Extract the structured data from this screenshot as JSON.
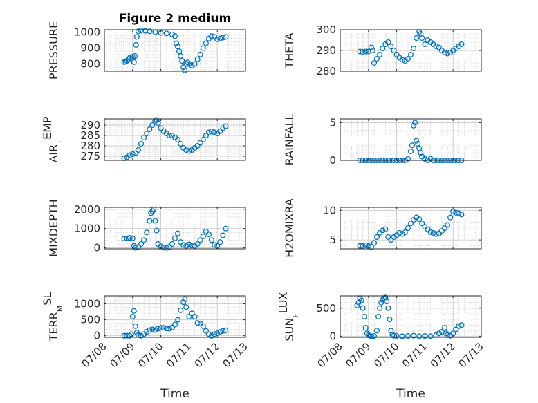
{
  "figure": {
    "title": "Figure 2 medium"
  },
  "colors": {
    "marker": "#0072BD",
    "axis": "#262626",
    "grid": "#c8c8c8"
  },
  "chart_data": [
    {
      "type": "scatter",
      "title": "Figure 2 medium",
      "xlabel": "",
      "ylabel": "PRESSURE",
      "xlim": [
        8,
        13
      ],
      "ylim": [
        755,
        1015
      ],
      "yticks": [
        800,
        900,
        1000
      ],
      "grid": true,
      "points": [
        [
          8.7,
          812
        ],
        [
          8.75,
          815
        ],
        [
          8.8,
          820
        ],
        [
          8.85,
          830
        ],
        [
          8.9,
          838
        ],
        [
          8.95,
          842
        ],
        [
          9.0,
          845
        ],
        [
          9.05,
          812
        ],
        [
          9.08,
          850
        ],
        [
          9.12,
          920
        ],
        [
          9.15,
          970
        ],
        [
          9.2,
          1005
        ],
        [
          9.3,
          1010
        ],
        [
          9.45,
          1008
        ],
        [
          9.6,
          1005
        ],
        [
          9.8,
          1000
        ],
        [
          10.0,
          995
        ],
        [
          10.2,
          992
        ],
        [
          10.4,
          985
        ],
        [
          10.5,
          975
        ],
        [
          10.55,
          930
        ],
        [
          10.6,
          910
        ],
        [
          10.65,
          880
        ],
        [
          10.7,
          850
        ],
        [
          10.75,
          820
        ],
        [
          10.8,
          780
        ],
        [
          10.85,
          760
        ],
        [
          10.9,
          800
        ],
        [
          10.95,
          810
        ],
        [
          11.0,
          800
        ],
        [
          11.1,
          790
        ],
        [
          11.2,
          800
        ],
        [
          11.3,
          830
        ],
        [
          11.4,
          860
        ],
        [
          11.5,
          900
        ],
        [
          11.6,
          930
        ],
        [
          11.7,
          960
        ],
        [
          11.8,
          975
        ],
        [
          11.9,
          970
        ],
        [
          12.0,
          955
        ],
        [
          12.1,
          960
        ],
        [
          12.2,
          965
        ],
        [
          12.3,
          970
        ]
      ]
    },
    {
      "type": "scatter",
      "title": "",
      "xlabel": "",
      "ylabel": "THETA",
      "xlim": [
        8,
        13
      ],
      "ylim": [
        280,
        300
      ],
      "yticks": [
        280,
        290,
        300
      ],
      "grid": true,
      "points": [
        [
          8.7,
          289.5
        ],
        [
          8.8,
          289.3
        ],
        [
          8.9,
          289.5
        ],
        [
          9.0,
          289.5
        ],
        [
          9.1,
          291.5
        ],
        [
          9.15,
          290
        ],
        [
          9.2,
          284
        ],
        [
          9.3,
          286
        ],
        [
          9.4,
          288
        ],
        [
          9.5,
          291
        ],
        [
          9.6,
          293
        ],
        [
          9.7,
          294
        ],
        [
          9.8,
          292
        ],
        [
          9.9,
          290
        ],
        [
          10.0,
          288
        ],
        [
          10.1,
          286.5
        ],
        [
          10.2,
          285.5
        ],
        [
          10.3,
          285
        ],
        [
          10.4,
          286
        ],
        [
          10.5,
          288
        ],
        [
          10.6,
          291
        ],
        [
          10.7,
          296
        ],
        [
          10.8,
          299
        ],
        [
          10.85,
          298
        ],
        [
          10.9,
          296
        ],
        [
          11.0,
          293
        ],
        [
          11.1,
          295
        ],
        [
          11.2,
          294
        ],
        [
          11.3,
          293
        ],
        [
          11.4,
          292
        ],
        [
          11.5,
          291.5
        ],
        [
          11.6,
          290
        ],
        [
          11.7,
          289
        ],
        [
          11.8,
          288.5
        ],
        [
          11.9,
          289
        ],
        [
          12.0,
          290
        ],
        [
          12.1,
          291
        ],
        [
          12.2,
          292
        ],
        [
          12.3,
          293
        ]
      ]
    },
    {
      "type": "scatter",
      "title": "",
      "xlabel": "",
      "ylabel": "AIR_TEMP",
      "xlim": [
        8,
        13
      ],
      "ylim": [
        273,
        293
      ],
      "yticks": [
        275,
        280,
        285,
        290
      ],
      "grid": true,
      "points": [
        [
          8.7,
          274
        ],
        [
          8.8,
          274.5
        ],
        [
          8.9,
          275.5
        ],
        [
          9.0,
          276
        ],
        [
          9.1,
          276.5
        ],
        [
          9.2,
          278
        ],
        [
          9.3,
          281
        ],
        [
          9.4,
          284
        ],
        [
          9.5,
          286
        ],
        [
          9.6,
          288
        ],
        [
          9.7,
          290
        ],
        [
          9.8,
          292
        ],
        [
          9.85,
          292.5
        ],
        [
          9.9,
          291
        ],
        [
          10.0,
          288.5
        ],
        [
          10.1,
          287
        ],
        [
          10.2,
          286
        ],
        [
          10.3,
          285
        ],
        [
          10.4,
          285
        ],
        [
          10.5,
          284
        ],
        [
          10.6,
          283
        ],
        [
          10.7,
          281
        ],
        [
          10.8,
          279
        ],
        [
          10.9,
          278
        ],
        [
          11.0,
          277.5
        ],
        [
          11.1,
          278
        ],
        [
          11.2,
          279
        ],
        [
          11.3,
          280
        ],
        [
          11.4,
          281.5
        ],
        [
          11.5,
          283
        ],
        [
          11.6,
          285
        ],
        [
          11.7,
          286.5
        ],
        [
          11.8,
          287
        ],
        [
          11.9,
          286.5
        ],
        [
          12.0,
          286
        ],
        [
          12.1,
          287
        ],
        [
          12.2,
          288.5
        ],
        [
          12.3,
          289.5
        ]
      ]
    },
    {
      "type": "scatter",
      "title": "",
      "xlabel": "",
      "ylabel": "RAINFALL",
      "xlim": [
        8,
        13
      ],
      "ylim": [
        0,
        5.5
      ],
      "yticks": [
        0,
        5
      ],
      "grid": true,
      "points": [
        [
          8.7,
          0
        ],
        [
          8.8,
          0
        ],
        [
          8.9,
          0
        ],
        [
          9.0,
          0
        ],
        [
          9.1,
          0
        ],
        [
          9.2,
          0
        ],
        [
          9.3,
          0
        ],
        [
          9.4,
          0
        ],
        [
          9.5,
          0
        ],
        [
          9.6,
          0
        ],
        [
          9.7,
          0
        ],
        [
          9.8,
          0
        ],
        [
          9.9,
          0
        ],
        [
          10.0,
          0
        ],
        [
          10.1,
          0
        ],
        [
          10.2,
          0
        ],
        [
          10.3,
          0
        ],
        [
          10.4,
          0.2
        ],
        [
          10.5,
          1.2
        ],
        [
          10.55,
          2.0
        ],
        [
          10.6,
          4.6
        ],
        [
          10.65,
          5.0
        ],
        [
          10.7,
          2.6
        ],
        [
          10.75,
          2.2
        ],
        [
          10.8,
          1.6
        ],
        [
          10.85,
          1.0
        ],
        [
          10.9,
          0.5
        ],
        [
          11.0,
          0.2
        ],
        [
          11.1,
          0
        ],
        [
          11.2,
          0.2
        ],
        [
          11.3,
          0
        ],
        [
          11.4,
          0
        ],
        [
          11.5,
          0
        ],
        [
          11.6,
          0
        ],
        [
          11.7,
          0
        ],
        [
          11.8,
          0
        ],
        [
          11.9,
          0
        ],
        [
          12.0,
          0
        ],
        [
          12.1,
          0
        ],
        [
          12.2,
          0
        ],
        [
          12.3,
          0
        ]
      ]
    },
    {
      "type": "scatter",
      "title": "",
      "xlabel": "",
      "ylabel": "MIXDEPTH",
      "xlim": [
        8,
        13
      ],
      "ylim": [
        -50,
        2100
      ],
      "yticks": [
        0,
        1000,
        2000
      ],
      "grid": true,
      "points": [
        [
          8.7,
          480
        ],
        [
          8.8,
          500
        ],
        [
          8.9,
          520
        ],
        [
          9.0,
          500
        ],
        [
          9.05,
          100
        ],
        [
          9.1,
          0
        ],
        [
          9.2,
          50
        ],
        [
          9.3,
          200
        ],
        [
          9.4,
          400
        ],
        [
          9.5,
          800
        ],
        [
          9.6,
          1400
        ],
        [
          9.65,
          1800
        ],
        [
          9.7,
          1900
        ],
        [
          9.75,
          2000
        ],
        [
          9.8,
          1400
        ],
        [
          9.85,
          900
        ],
        [
          9.9,
          200
        ],
        [
          10.0,
          80
        ],
        [
          10.1,
          20
        ],
        [
          10.2,
          0
        ],
        [
          10.3,
          50
        ],
        [
          10.4,
          200
        ],
        [
          10.5,
          500
        ],
        [
          10.6,
          750
        ],
        [
          10.7,
          300
        ],
        [
          10.8,
          150
        ],
        [
          10.9,
          100
        ],
        [
          11.0,
          180
        ],
        [
          11.1,
          120
        ],
        [
          11.2,
          100
        ],
        [
          11.3,
          200
        ],
        [
          11.4,
          400
        ],
        [
          11.5,
          600
        ],
        [
          11.6,
          850
        ],
        [
          11.7,
          700
        ],
        [
          11.8,
          400
        ],
        [
          11.9,
          150
        ],
        [
          12.0,
          100
        ],
        [
          12.1,
          300
        ],
        [
          12.2,
          650
        ],
        [
          12.3,
          1000
        ]
      ]
    },
    {
      "type": "scatter",
      "title": "",
      "xlabel": "",
      "ylabel": "H2OMIXRA",
      "xlim": [
        8,
        13
      ],
      "ylim": [
        3.5,
        10.5
      ],
      "yticks": [
        5,
        10
      ],
      "grid": true,
      "points": [
        [
          8.7,
          4.0
        ],
        [
          8.8,
          4.0
        ],
        [
          8.9,
          4.1
        ],
        [
          9.0,
          4.0
        ],
        [
          9.1,
          3.8
        ],
        [
          9.2,
          4.5
        ],
        [
          9.3,
          5.5
        ],
        [
          9.4,
          6.2
        ],
        [
          9.5,
          6.6
        ],
        [
          9.6,
          6.8
        ],
        [
          9.7,
          5.5
        ],
        [
          9.8,
          5.0
        ],
        [
          9.9,
          5.5
        ],
        [
          10.0,
          5.8
        ],
        [
          10.1,
          6.2
        ],
        [
          10.2,
          6.0
        ],
        [
          10.3,
          6.3
        ],
        [
          10.4,
          7.0
        ],
        [
          10.5,
          7.8
        ],
        [
          10.6,
          8.4
        ],
        [
          10.7,
          8.8
        ],
        [
          10.8,
          8.5
        ],
        [
          10.9,
          7.8
        ],
        [
          11.0,
          7.2
        ],
        [
          11.1,
          6.8
        ],
        [
          11.2,
          6.3
        ],
        [
          11.3,
          6.2
        ],
        [
          11.4,
          6.0
        ],
        [
          11.5,
          6.1
        ],
        [
          11.6,
          6.5
        ],
        [
          11.7,
          7.0
        ],
        [
          11.8,
          7.5
        ],
        [
          11.9,
          8.8
        ],
        [
          12.0,
          9.8
        ],
        [
          12.1,
          9.6
        ],
        [
          12.2,
          9.5
        ],
        [
          12.3,
          9.3
        ]
      ]
    },
    {
      "type": "scatter",
      "title": "",
      "xlabel": "Time",
      "ylabel": "TERR_MSL",
      "xlim": [
        8,
        13
      ],
      "ylim": [
        -50,
        1250
      ],
      "yticks": [
        0,
        500,
        1000
      ],
      "grid": true,
      "xticks": [
        "07/08",
        "07/09",
        "07/10",
        "07/11",
        "07/12",
        "07/13"
      ],
      "points": [
        [
          8.7,
          0
        ],
        [
          8.8,
          0
        ],
        [
          8.9,
          0
        ],
        [
          8.95,
          50
        ],
        [
          9.0,
          600
        ],
        [
          9.05,
          780
        ],
        [
          9.1,
          300
        ],
        [
          9.15,
          100
        ],
        [
          9.2,
          20
        ],
        [
          9.3,
          0
        ],
        [
          9.4,
          50
        ],
        [
          9.5,
          120
        ],
        [
          9.6,
          180
        ],
        [
          9.7,
          200
        ],
        [
          9.8,
          180
        ],
        [
          9.9,
          220
        ],
        [
          10.0,
          250
        ],
        [
          10.1,
          250
        ],
        [
          10.2,
          230
        ],
        [
          10.3,
          220
        ],
        [
          10.4,
          260
        ],
        [
          10.5,
          350
        ],
        [
          10.6,
          500
        ],
        [
          10.7,
          800
        ],
        [
          10.8,
          1050
        ],
        [
          10.85,
          1150
        ],
        [
          10.9,
          900
        ],
        [
          11.0,
          600
        ],
        [
          11.1,
          700
        ],
        [
          11.2,
          600
        ],
        [
          11.3,
          400
        ],
        [
          11.4,
          380
        ],
        [
          11.5,
          300
        ],
        [
          11.6,
          150
        ],
        [
          11.7,
          50
        ],
        [
          11.8,
          0
        ],
        [
          11.9,
          50
        ],
        [
          12.0,
          80
        ],
        [
          12.1,
          120
        ],
        [
          12.2,
          150
        ],
        [
          12.3,
          170
        ]
      ]
    },
    {
      "type": "scatter",
      "title": "",
      "xlabel": "Time",
      "ylabel": "SUN_FLUX",
      "xlim": [
        8,
        13
      ],
      "ylim": [
        -20,
        720
      ],
      "yticks": [
        0,
        500
      ],
      "grid": true,
      "xticks": [
        "07/08",
        "07/09",
        "07/10",
        "07/11",
        "07/12",
        "07/13"
      ],
      "points": [
        [
          8.6,
          550
        ],
        [
          8.65,
          600
        ],
        [
          8.7,
          680
        ],
        [
          8.75,
          640
        ],
        [
          8.8,
          500
        ],
        [
          8.85,
          350
        ],
        [
          8.9,
          150
        ],
        [
          8.95,
          50
        ],
        [
          9.0,
          20
        ],
        [
          9.05,
          10
        ],
        [
          9.1,
          0
        ],
        [
          9.2,
          5
        ],
        [
          9.3,
          100
        ],
        [
          9.35,
          350
        ],
        [
          9.4,
          500
        ],
        [
          9.45,
          600
        ],
        [
          9.5,
          650
        ],
        [
          9.55,
          680
        ],
        [
          9.6,
          690
        ],
        [
          9.65,
          620
        ],
        [
          9.7,
          500
        ],
        [
          9.75,
          300
        ],
        [
          9.8,
          100
        ],
        [
          9.85,
          30
        ],
        [
          9.9,
          10
        ],
        [
          10.0,
          5
        ],
        [
          10.2,
          0
        ],
        [
          10.4,
          5
        ],
        [
          10.6,
          10
        ],
        [
          10.8,
          0
        ],
        [
          11.0,
          5
        ],
        [
          11.2,
          0
        ],
        [
          11.4,
          20
        ],
        [
          11.5,
          50
        ],
        [
          11.6,
          80
        ],
        [
          11.7,
          150
        ],
        [
          11.75,
          50
        ],
        [
          11.8,
          20
        ],
        [
          11.9,
          10
        ],
        [
          12.0,
          50
        ],
        [
          12.1,
          120
        ],
        [
          12.2,
          180
        ],
        [
          12.3,
          200
        ]
      ]
    }
  ]
}
